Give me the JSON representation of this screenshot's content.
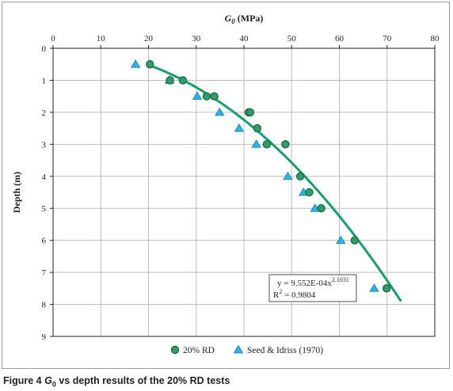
{
  "chart_data": {
    "type": "scatter",
    "x_axis": {
      "label": "G",
      "label_sub": "0",
      "label_unit": " (MPa)",
      "position": "top",
      "range": [
        0,
        80
      ],
      "ticks": [
        0,
        10,
        20,
        30,
        40,
        50,
        60,
        70,
        80
      ],
      "grid": true
    },
    "y_axis": {
      "label": "Depth (m)",
      "range": [
        0,
        9
      ],
      "inverted": true,
      "ticks": [
        0,
        1,
        2,
        3,
        4,
        5,
        6,
        7,
        8,
        9
      ],
      "grid": true
    },
    "series": [
      {
        "name": "20% RD",
        "marker": "circle",
        "color": "#2e9e6b",
        "stroke": "#17643f",
        "points": [
          [
            20.3,
            0.5
          ],
          [
            24.5,
            1.0
          ],
          [
            27.2,
            1.0
          ],
          [
            32.2,
            1.5
          ],
          [
            33.8,
            1.5
          ],
          [
            41.0,
            2.0
          ],
          [
            41.3,
            2.0
          ],
          [
            42.8,
            2.5
          ],
          [
            44.8,
            3.0
          ],
          [
            48.7,
            3.0
          ],
          [
            51.8,
            4.0
          ],
          [
            53.7,
            4.5
          ],
          [
            56.2,
            5.0
          ],
          [
            63.2,
            6.0
          ],
          [
            69.9,
            7.5
          ]
        ]
      },
      {
        "name": "Seed & Idriss (1970)",
        "marker": "triangle",
        "color": "#29b6e6",
        "stroke": "#1b86b5",
        "points": [
          [
            17.3,
            0.5
          ],
          [
            24.4,
            1.0
          ],
          [
            30.2,
            1.5
          ],
          [
            34.9,
            2.0
          ],
          [
            39.0,
            2.5
          ],
          [
            42.6,
            3.0
          ],
          [
            49.2,
            4.0
          ],
          [
            52.5,
            4.5
          ],
          [
            54.9,
            5.0
          ],
          [
            60.3,
            6.0
          ],
          [
            67.3,
            7.5
          ]
        ]
      }
    ],
    "trendline": {
      "type": "power",
      "coefficient": 0.0009552,
      "exponent": 2.1031,
      "x_range": [
        20.3,
        72.8
      ],
      "color": "#13a06a",
      "equation_prefix": "y = 9.552E-04x",
      "equation_exponent": "2.1031",
      "r2_prefix": "R",
      "r2_sup": "2",
      "r2_suffix": " = 0.9804"
    },
    "legend": {
      "position": "bottom",
      "items": [
        "20% RD",
        "Seed & Idriss (1970)"
      ]
    }
  },
  "caption": {
    "prefix": "Figure 4 ",
    "var": "G",
    "sub": "0",
    "suffix": " vs depth results of the 20% RD tests"
  }
}
